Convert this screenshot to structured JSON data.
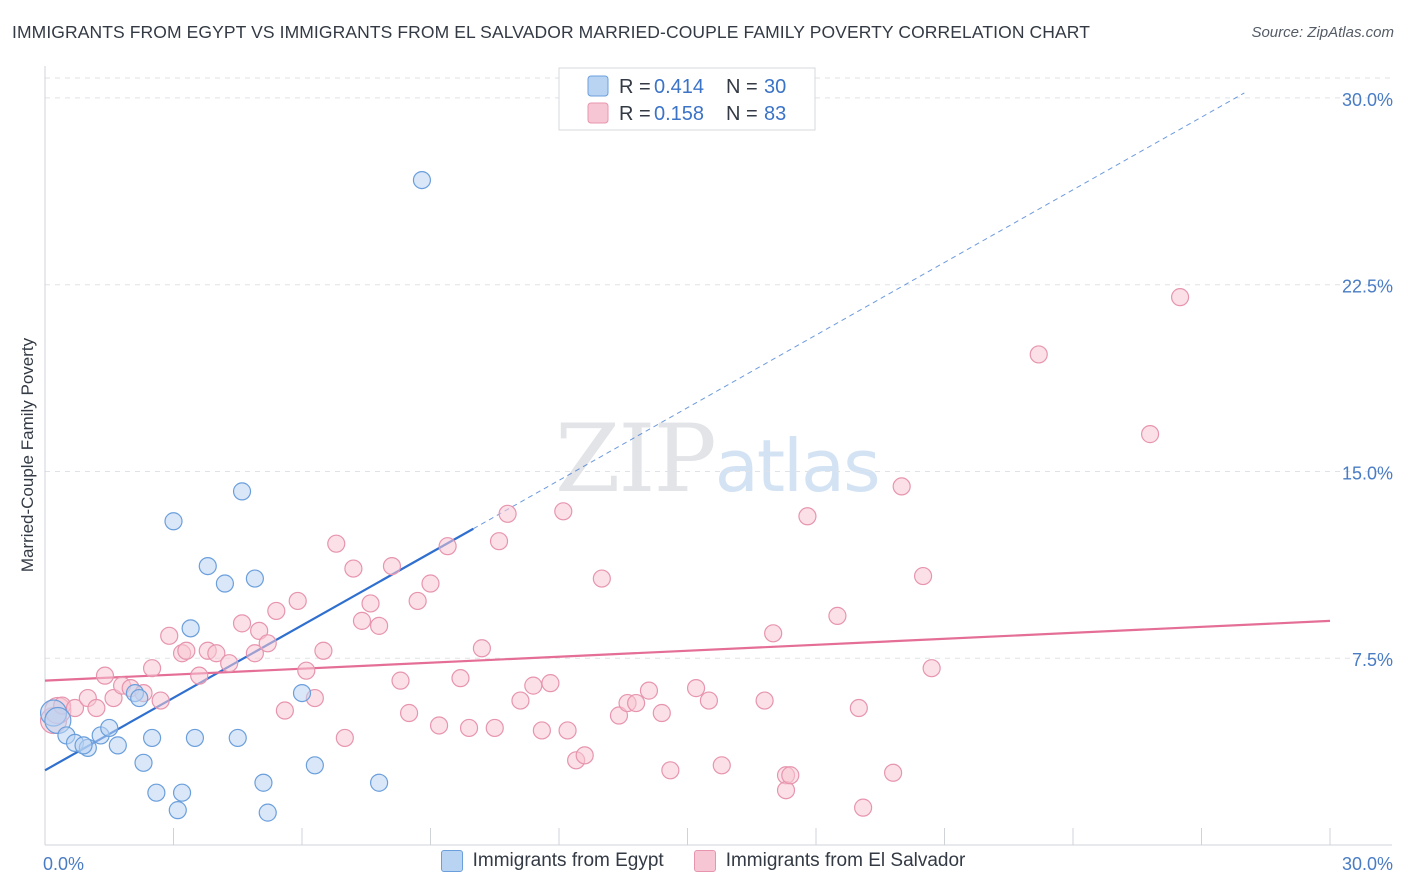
{
  "header": {
    "title": "IMMIGRANTS FROM EGYPT VS IMMIGRANTS FROM EL SALVADOR MARRIED-COUPLE FAMILY POVERTY CORRELATION CHART",
    "source": "Source: ZipAtlas.com"
  },
  "watermark": {
    "zip": "ZIP",
    "atlas": "atlas"
  },
  "colors": {
    "egypt_fill": "#b9d3f2",
    "egypt_stroke": "#6b9fdc",
    "egypt_line": "#2f6fcf",
    "salvador_fill": "#f7c6d4",
    "salvador_stroke": "#e795ae",
    "salvador_line": "#e46e96",
    "tick_text": "#4a7cc4",
    "grid": "#dfe2e6"
  },
  "legend": {
    "rows": [
      {
        "r_label": "R =",
        "r_value": "0.414",
        "n_label": "N =",
        "n_value": "30"
      },
      {
        "r_label": "R =",
        "r_value": "0.158",
        "n_label": "N =",
        "n_value": "83"
      }
    ]
  },
  "bottom_legend": {
    "egypt": "Immigrants from Egypt",
    "salvador": "Immigrants from El Salvador"
  },
  "chart_data": {
    "type": "scatter",
    "title": "IMMIGRANTS FROM EGYPT VS IMMIGRANTS FROM EL SALVADOR MARRIED-COUPLE FAMILY POVERTY CORRELATION CHART",
    "xlabel": "",
    "ylabel": "Married-Couple Family Poverty",
    "xlim": [
      0,
      30
    ],
    "ylim": [
      0,
      30.8
    ],
    "x_tick_labels": [
      "0.0%",
      "30.0%"
    ],
    "y_ticks": [
      {
        "value": 7.5,
        "label": "7.5%"
      },
      {
        "value": 15.0,
        "label": "15.0%"
      },
      {
        "value": 22.5,
        "label": "22.5%"
      },
      {
        "value": 30.0,
        "label": "30.0%"
      }
    ],
    "series": [
      {
        "name": "Immigrants from Egypt",
        "R": 0.414,
        "N": 30,
        "trend": {
          "x": [
            0,
            10.0
          ],
          "y": [
            3.0,
            12.7
          ]
        },
        "trend_extension": {
          "x": [
            10.0,
            28.0
          ],
          "y": [
            12.7,
            30.2
          ]
        },
        "points": [
          {
            "x": 0.2,
            "y": 5.3,
            "big": true
          },
          {
            "x": 0.3,
            "y": 5.0,
            "big": true
          },
          {
            "x": 0.5,
            "y": 4.4
          },
          {
            "x": 0.7,
            "y": 4.1
          },
          {
            "x": 1.0,
            "y": 3.9
          },
          {
            "x": 0.9,
            "y": 4.0
          },
          {
            "x": 1.3,
            "y": 4.4
          },
          {
            "x": 1.5,
            "y": 4.7
          },
          {
            "x": 1.7,
            "y": 4.0
          },
          {
            "x": 2.1,
            "y": 6.1
          },
          {
            "x": 2.2,
            "y": 5.9
          },
          {
            "x": 2.3,
            "y": 3.3
          },
          {
            "x": 2.5,
            "y": 4.3
          },
          {
            "x": 2.6,
            "y": 2.1
          },
          {
            "x": 3.0,
            "y": 13.0
          },
          {
            "x": 3.1,
            "y": 1.4
          },
          {
            "x": 3.2,
            "y": 2.1
          },
          {
            "x": 3.4,
            "y": 8.7
          },
          {
            "x": 3.5,
            "y": 4.3
          },
          {
            "x": 3.8,
            "y": 11.2
          },
          {
            "x": 4.2,
            "y": 10.5
          },
          {
            "x": 4.5,
            "y": 4.3
          },
          {
            "x": 4.6,
            "y": 14.2
          },
          {
            "x": 4.9,
            "y": 10.7
          },
          {
            "x": 5.1,
            "y": 2.5
          },
          {
            "x": 5.2,
            "y": 1.3
          },
          {
            "x": 6.0,
            "y": 6.1
          },
          {
            "x": 6.3,
            "y": 3.2
          },
          {
            "x": 7.8,
            "y": 2.5
          },
          {
            "x": 8.8,
            "y": 26.7
          }
        ]
      },
      {
        "name": "Immigrants from El Salvador",
        "R": 0.158,
        "N": 83,
        "trend": {
          "x": [
            0,
            30.0
          ],
          "y": [
            6.6,
            9.0
          ]
        },
        "points": [
          {
            "x": 0.2,
            "y": 5.0,
            "big": true
          },
          {
            "x": 0.3,
            "y": 5.4,
            "big": true
          },
          {
            "x": 0.4,
            "y": 5.6
          },
          {
            "x": 0.7,
            "y": 5.5
          },
          {
            "x": 1.0,
            "y": 5.9
          },
          {
            "x": 1.2,
            "y": 5.5
          },
          {
            "x": 1.4,
            "y": 6.8
          },
          {
            "x": 1.6,
            "y": 5.9
          },
          {
            "x": 1.8,
            "y": 6.4
          },
          {
            "x": 2.0,
            "y": 6.3
          },
          {
            "x": 2.3,
            "y": 6.1
          },
          {
            "x": 2.5,
            "y": 7.1
          },
          {
            "x": 2.7,
            "y": 5.8
          },
          {
            "x": 2.9,
            "y": 8.4
          },
          {
            "x": 3.2,
            "y": 7.7
          },
          {
            "x": 3.3,
            "y": 7.8
          },
          {
            "x": 3.6,
            "y": 6.8
          },
          {
            "x": 3.8,
            "y": 7.8
          },
          {
            "x": 4.0,
            "y": 7.7
          },
          {
            "x": 4.3,
            "y": 7.3
          },
          {
            "x": 4.6,
            "y": 8.9
          },
          {
            "x": 4.9,
            "y": 7.7
          },
          {
            "x": 5.0,
            "y": 8.6
          },
          {
            "x": 5.2,
            "y": 8.1
          },
          {
            "x": 5.4,
            "y": 9.4
          },
          {
            "x": 5.6,
            "y": 5.4
          },
          {
            "x": 5.9,
            "y": 9.8
          },
          {
            "x": 6.1,
            "y": 7.0
          },
          {
            "x": 6.3,
            "y": 5.9
          },
          {
            "x": 6.5,
            "y": 7.8
          },
          {
            "x": 6.8,
            "y": 12.1
          },
          {
            "x": 7.0,
            "y": 4.3
          },
          {
            "x": 7.2,
            "y": 11.1
          },
          {
            "x": 7.4,
            "y": 9.0
          },
          {
            "x": 7.6,
            "y": 9.7
          },
          {
            "x": 7.8,
            "y": 8.8
          },
          {
            "x": 8.1,
            "y": 11.2
          },
          {
            "x": 8.3,
            "y": 6.6
          },
          {
            "x": 8.5,
            "y": 5.3
          },
          {
            "x": 8.7,
            "y": 9.8
          },
          {
            "x": 9.0,
            "y": 10.5
          },
          {
            "x": 9.2,
            "y": 4.8
          },
          {
            "x": 9.4,
            "y": 12.0
          },
          {
            "x": 9.7,
            "y": 6.7
          },
          {
            "x": 9.9,
            "y": 4.7
          },
          {
            "x": 10.2,
            "y": 7.9
          },
          {
            "x": 10.5,
            "y": 4.7
          },
          {
            "x": 10.6,
            "y": 12.2
          },
          {
            "x": 10.8,
            "y": 13.3
          },
          {
            "x": 11.1,
            "y": 5.8
          },
          {
            "x": 11.4,
            "y": 6.4
          },
          {
            "x": 11.6,
            "y": 4.6
          },
          {
            "x": 11.8,
            "y": 6.5
          },
          {
            "x": 12.1,
            "y": 13.4
          },
          {
            "x": 12.2,
            "y": 4.6
          },
          {
            "x": 12.4,
            "y": 3.4
          },
          {
            "x": 12.6,
            "y": 3.6
          },
          {
            "x": 13.0,
            "y": 10.7
          },
          {
            "x": 13.4,
            "y": 5.2
          },
          {
            "x": 13.6,
            "y": 5.7
          },
          {
            "x": 13.8,
            "y": 5.7
          },
          {
            "x": 14.1,
            "y": 6.2
          },
          {
            "x": 14.4,
            "y": 5.3
          },
          {
            "x": 14.6,
            "y": 3.0
          },
          {
            "x": 15.2,
            "y": 6.3
          },
          {
            "x": 15.5,
            "y": 5.8
          },
          {
            "x": 15.8,
            "y": 3.2
          },
          {
            "x": 16.8,
            "y": 5.8
          },
          {
            "x": 17.0,
            "y": 8.5
          },
          {
            "x": 17.3,
            "y": 2.8
          },
          {
            "x": 17.3,
            "y": 2.2
          },
          {
            "x": 17.4,
            "y": 2.8
          },
          {
            "x": 17.8,
            "y": 13.2
          },
          {
            "x": 18.5,
            "y": 9.2
          },
          {
            "x": 19.0,
            "y": 5.5
          },
          {
            "x": 19.1,
            "y": 1.5
          },
          {
            "x": 19.8,
            "y": 2.9
          },
          {
            "x": 20.0,
            "y": 14.4
          },
          {
            "x": 20.5,
            "y": 10.8
          },
          {
            "x": 20.7,
            "y": 7.1
          },
          {
            "x": 23.2,
            "y": 19.7
          },
          {
            "x": 25.8,
            "y": 16.5
          },
          {
            "x": 26.5,
            "y": 22.0
          }
        ]
      }
    ]
  }
}
